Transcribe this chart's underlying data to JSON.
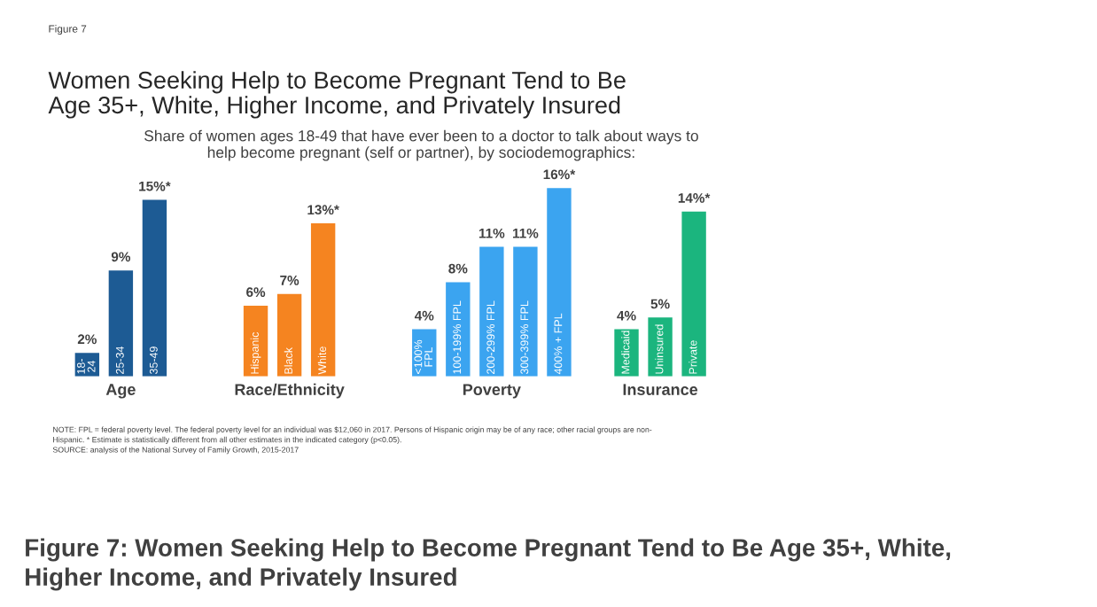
{
  "chart_data": {
    "type": "bar",
    "title": "Women Seeking Help to Become Pregnant Tend to Be\nAge 35+, White, Higher Income, and Privately Insured",
    "subtitle": "Share of women ages 18-49 that have ever been to a doctor to talk about ways to\nhelp become pregnant (self or partner), by sociodemographics:",
    "categories": [
      "18-\n24",
      "25-34",
      "35-49",
      null,
      null,
      "Hispanic",
      "Black",
      "White",
      null,
      null,
      "<100%\nFPL",
      "100-199% FPL",
      "200-299% FPL",
      "300-399% FPL",
      "400% + FPL",
      null,
      "Medicaid",
      "Uninsured",
      "Private"
    ],
    "series": [
      {
        "name": "Age",
        "color": "#1d5b94",
        "values": [
          2,
          9,
          15,
          null,
          null,
          null,
          null,
          null,
          null,
          null,
          null,
          null,
          null,
          null,
          null,
          null,
          null,
          null,
          null
        ],
        "value_labels": [
          "2%",
          "9%",
          "15%*",
          null,
          null,
          null,
          null,
          null,
          null,
          null,
          null,
          null,
          null,
          null,
          null,
          null,
          null,
          null,
          null
        ]
      },
      {
        "name": "Race/Ethnicity",
        "color": "#f58420",
        "values": [
          null,
          null,
          null,
          null,
          null,
          6,
          7,
          13,
          null,
          null,
          null,
          null,
          null,
          null,
          null,
          null,
          null,
          null,
          null
        ],
        "value_labels": [
          null,
          null,
          null,
          null,
          null,
          "6%",
          "7%",
          "13%*",
          null,
          null,
          null,
          null,
          null,
          null,
          null,
          null,
          null,
          null,
          null
        ]
      },
      {
        "name": "Poverty",
        "color": "#3ba4f0",
        "values": [
          null,
          null,
          null,
          null,
          null,
          null,
          null,
          null,
          null,
          null,
          4,
          8,
          11,
          11,
          16,
          null,
          null,
          null,
          null
        ],
        "value_labels": [
          null,
          null,
          null,
          null,
          null,
          null,
          null,
          null,
          null,
          null,
          "4%",
          "8%",
          "11%",
          "11%",
          "16%*",
          null,
          null,
          null,
          null
        ]
      },
      {
        "name": "Insurance",
        "color": "#1bb57e",
        "values": [
          null,
          null,
          null,
          null,
          null,
          null,
          null,
          null,
          null,
          null,
          null,
          null,
          null,
          null,
          null,
          null,
          4,
          5,
          14
        ],
        "value_labels": [
          null,
          null,
          null,
          null,
          null,
          null,
          null,
          null,
          null,
          null,
          null,
          null,
          null,
          null,
          null,
          null,
          "4%",
          "5%",
          "14%*"
        ]
      }
    ],
    "annotations": [
      "Figure 7",
      "NOTE: FPL = federal poverty level. The federal poverty level for an individual was $12,060 in 2017. Persons of Hispanic origin may be of any race; other racial groups are non-\nHispanic. * Estimate is statistically different from all other estimates in the indicated category (p<0.05).",
      "SOURCE: analysis of the National Survey of Family Growth, 2015-2017",
      "Figure 7: Women Seeking Help to Become Pregnant Tend to Be Age 35+, White,\nHigher Income, and Privately Insured"
    ],
    "legend": false
  }
}
